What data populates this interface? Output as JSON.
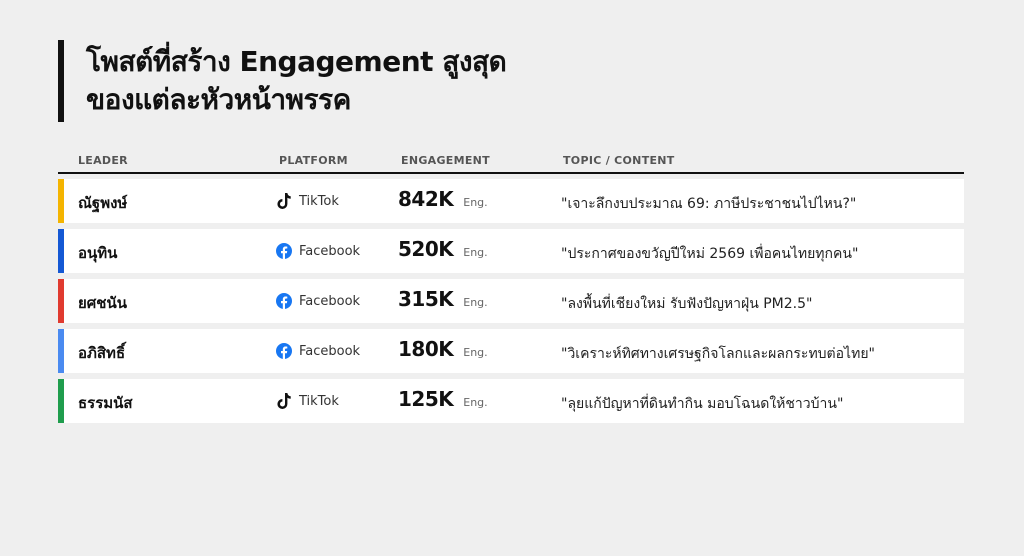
{
  "title": {
    "line1": "โพสต์ที่สร้าง Engagement สูงสุด",
    "line2": "ของแต่ละหัวหน้าพรรค"
  },
  "columns": {
    "leader": "LEADER",
    "platform": "PLATFORM",
    "engagement": "ENGAGEMENT",
    "topic": "TOPIC / CONTENT"
  },
  "rows": [
    {
      "leader": "ณัฐพงษ์",
      "color": "#f4b400",
      "platform": "TikTok",
      "platform_icon": "tiktok-icon",
      "engagement": "842K",
      "unit": "Eng.",
      "topic": "\"เจาะลึกงบประมาณ 69: ภาษีประชาชนไปไหน?\""
    },
    {
      "leader": "อนุทิน",
      "color": "#1458d4",
      "platform": "Facebook",
      "platform_icon": "facebook-icon",
      "engagement": "520K",
      "unit": "Eng.",
      "topic": "\"ประกาศของขวัญปีใหม่ 2569 เพื่อคนไทยทุกคน\""
    },
    {
      "leader": "ยศชนัน",
      "color": "#e03a2f",
      "platform": "Facebook",
      "platform_icon": "facebook-icon",
      "engagement": "315K",
      "unit": "Eng.",
      "topic": "\"ลงพื้นที่เชียงใหม่ รับฟังปัญหาฝุ่น PM2.5\""
    },
    {
      "leader": "อภิสิทธิ์",
      "color": "#4a8af0",
      "platform": "Facebook",
      "platform_icon": "facebook-icon",
      "engagement": "180K",
      "unit": "Eng.",
      "topic": "\"วิเคราะห์ทิศทางเศรษฐกิจโลกและผลกระทบต่อไทย\""
    },
    {
      "leader": "ธรรมนัส",
      "color": "#1f9d4d",
      "platform": "TikTok",
      "platform_icon": "tiktok-icon",
      "engagement": "125K",
      "unit": "Eng.",
      "topic": "\"ลุยแก้ปัญหาที่ดินทำกิน มอบโฉนดให้ชาวบ้าน\""
    }
  ]
}
